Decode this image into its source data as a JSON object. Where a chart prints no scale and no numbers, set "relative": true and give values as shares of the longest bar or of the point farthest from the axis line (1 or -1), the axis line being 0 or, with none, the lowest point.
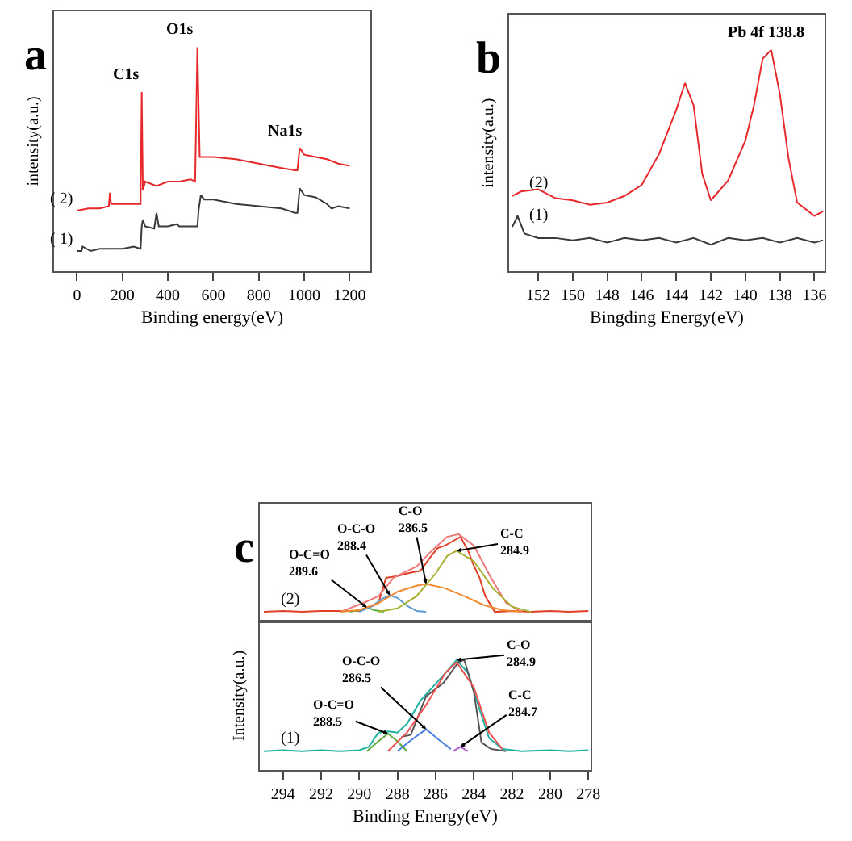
{
  "chart_data": [
    {
      "type": "line",
      "title": "a",
      "xlabel": "Binding energy(eV)",
      "ylabel": "intensity(a.u.)",
      "relative": true,
      "tick_labels": "x",
      "xlim": [
        -100,
        1290
      ],
      "xticks": [
        0,
        200,
        400,
        600,
        800,
        1000,
        1200
      ],
      "series": [
        {
          "name": "( 1)",
          "color": "#3a3a3a",
          "x": [
            0,
            20,
            25,
            60,
            100,
            150,
            200,
            250,
            280,
            285,
            290,
            300,
            340,
            350,
            360,
            400,
            440,
            450,
            500,
            530,
            535,
            545,
            560,
            600,
            700,
            800,
            900,
            960,
            970,
            980,
            1000,
            1050,
            1100,
            1120,
            1150,
            1200
          ],
          "values": [
            0.09,
            0.09,
            0.11,
            0.09,
            0.1,
            0.1,
            0.1,
            0.11,
            0.1,
            0.2,
            0.23,
            0.2,
            0.19,
            0.26,
            0.2,
            0.2,
            0.21,
            0.2,
            0.2,
            0.2,
            0.27,
            0.34,
            0.32,
            0.32,
            0.3,
            0.29,
            0.28,
            0.26,
            0.26,
            0.37,
            0.34,
            0.33,
            0.3,
            0.28,
            0.29,
            0.28
          ]
        },
        {
          "name": "( 2)",
          "color": "#e8292b",
          "x": [
            0,
            50,
            100,
            140,
            145,
            150,
            200,
            250,
            280,
            285,
            290,
            300,
            350,
            400,
            450,
            500,
            520,
            530,
            540,
            560,
            600,
            700,
            800,
            900,
            960,
            970,
            980,
            1000,
            1050,
            1100,
            1150,
            1200
          ],
          "values": [
            0.27,
            0.28,
            0.28,
            0.29,
            0.35,
            0.3,
            0.3,
            0.3,
            0.3,
            0.8,
            0.36,
            0.4,
            0.38,
            0.4,
            0.4,
            0.41,
            0.4,
            1.0,
            0.51,
            0.51,
            0.51,
            0.5,
            0.48,
            0.46,
            0.45,
            0.45,
            0.55,
            0.52,
            0.51,
            0.5,
            0.48,
            0.47
          ]
        }
      ],
      "annotations": [
        {
          "text": "C1s",
          "x": 285,
          "y": 0.8
        },
        {
          "text": "O1s",
          "x": 530,
          "y": 1.0
        },
        {
          "text": "Na1s",
          "x": 1000,
          "y": 0.55
        }
      ]
    },
    {
      "type": "line",
      "title": "b",
      "xlabel": "Bingding Energy(eV)",
      "ylabel": "intensity(a.u.)",
      "relative": true,
      "tick_labels": "x",
      "xlim": [
        153.7,
        135.4
      ],
      "xticks": [
        152,
        150,
        148,
        146,
        144,
        142,
        140,
        138,
        136
      ],
      "series": [
        {
          "name": "(1)",
          "color": "#3a3a3a",
          "x": [
            153.5,
            153.2,
            152.8,
            152.0,
            151.0,
            150.0,
            149.0,
            148.0,
            147.0,
            146.0,
            145.0,
            144.0,
            143.0,
            142.0,
            141.0,
            140.0,
            139.0,
            138.0,
            137.0,
            136.0,
            135.5
          ],
          "values": [
            0.2,
            0.25,
            0.17,
            0.15,
            0.15,
            0.14,
            0.15,
            0.13,
            0.15,
            0.14,
            0.15,
            0.13,
            0.15,
            0.12,
            0.15,
            0.14,
            0.15,
            0.13,
            0.15,
            0.13,
            0.14
          ]
        },
        {
          "name": "(2)",
          "color": "#e8292b",
          "x": [
            153.5,
            153.0,
            152.0,
            151.0,
            150.0,
            149.0,
            148.0,
            147.0,
            146.0,
            145.0,
            144.0,
            143.5,
            143.0,
            142.5,
            142.0,
            141.0,
            140.0,
            139.5,
            139.0,
            138.5,
            138.0,
            137.5,
            137.0,
            136.0,
            135.5
          ],
          "values": [
            0.34,
            0.36,
            0.37,
            0.33,
            0.32,
            0.3,
            0.31,
            0.34,
            0.39,
            0.53,
            0.73,
            0.85,
            0.75,
            0.44,
            0.32,
            0.41,
            0.59,
            0.75,
            0.96,
            1.0,
            0.8,
            0.51,
            0.31,
            0.25,
            0.27
          ]
        }
      ],
      "annotations": [
        {
          "text": "Pb 4f 138.8",
          "x": 138.8,
          "y": 1.0
        }
      ]
    },
    {
      "type": "line",
      "title": "c",
      "relative": true,
      "tick_labels": false,
      "xlim": [
        295.2,
        277.9
      ],
      "series": [
        {
          "name": "(2)",
          "color": "#e04028",
          "x": [
            295.0,
            294.0,
            293.0,
            292.0,
            291.0,
            290.0,
            289.5,
            289.0,
            288.6,
            288.0,
            287.5,
            286.8,
            286.3,
            285.9,
            285.5,
            285.1,
            284.7,
            284.3,
            284.0,
            283.7,
            283.4,
            282.9,
            282.0,
            281.0,
            280.0,
            279.0,
            278.0
          ],
          "values": [
            0.11,
            0.12,
            0.11,
            0.12,
            0.12,
            0.12,
            0.16,
            0.21,
            0.5,
            0.52,
            0.55,
            0.58,
            0.73,
            0.84,
            0.87,
            0.92,
            0.97,
            0.81,
            0.64,
            0.5,
            0.29,
            0.11,
            0.12,
            0.11,
            0.12,
            0.11,
            0.12
          ]
        },
        {
          "color": "#f07878",
          "x": [
            291.0,
            289.8,
            289.0,
            288.2,
            287.0,
            286.2,
            285.4,
            284.8,
            284.0,
            283.1,
            282.3,
            281.5
          ],
          "values": [
            0.11,
            0.21,
            0.29,
            0.5,
            0.63,
            0.81,
            0.97,
            1.0,
            0.87,
            0.5,
            0.21,
            0.11
          ]
        },
        {
          "color": "#5aaa3c",
          "x": [
            290.5,
            290.0,
            289.6,
            289.2,
            288.7
          ],
          "values": [
            0.11,
            0.13,
            0.16,
            0.13,
            0.11
          ]
        },
        {
          "color": "#5b9bd5",
          "x": [
            290.0,
            289.3,
            288.8,
            288.4,
            288.0,
            287.5,
            287.0,
            286.5
          ],
          "values": [
            0.11,
            0.18,
            0.26,
            0.3,
            0.27,
            0.18,
            0.12,
            0.11
          ]
        },
        {
          "color": "#f08a30",
          "x": [
            291.0,
            290.0,
            289.0,
            288.0,
            287.0,
            286.5,
            285.5,
            284.5,
            283.5,
            282.5,
            281.5
          ],
          "values": [
            0.11,
            0.13,
            0.21,
            0.34,
            0.41,
            0.43,
            0.38,
            0.29,
            0.19,
            0.13,
            0.11
          ]
        },
        {
          "color": "#a8b030",
          "x": [
            289.0,
            288.0,
            287.0,
            286.0,
            285.4,
            284.9,
            284.0,
            283.0,
            282.0,
            281.0
          ],
          "values": [
            0.11,
            0.15,
            0.29,
            0.55,
            0.75,
            0.81,
            0.69,
            0.38,
            0.17,
            0.11
          ]
        }
      ],
      "annotations": [
        {
          "text": "O-C=O\n289.6",
          "x": 289.6,
          "y": 0.16
        },
        {
          "text": "O-C-O\n288.4",
          "x": 288.4,
          "y": 0.3
        },
        {
          "text": "C-O\n286.5",
          "x": 286.5,
          "y": 0.43
        },
        {
          "text": "C-C\n284.9",
          "x": 284.9,
          "y": 0.81
        }
      ]
    },
    {
      "type": "line",
      "xlabel": "Binding Energy(eV)",
      "ylabel": "Intensity(a.u.)",
      "relative": true,
      "tick_labels": "x",
      "xlim": [
        295.2,
        277.9
      ],
      "xticks": [
        294,
        292,
        290,
        288,
        286,
        284,
        282,
        280,
        278
      ],
      "series": [
        {
          "name": "(1)",
          "color": "#20b2a0",
          "x": [
            295.0,
            294.0,
            293.0,
            292.0,
            291.0,
            290.0,
            289.5,
            289.0,
            288.5,
            288.0,
            287.5,
            286.8,
            285.5,
            284.9,
            284.3,
            283.7,
            283.2,
            282.5,
            281.5,
            280.0,
            279.0,
            278.0
          ],
          "values": [
            0.17,
            0.18,
            0.17,
            0.18,
            0.17,
            0.18,
            0.21,
            0.34,
            0.35,
            0.34,
            0.42,
            0.63,
            0.88,
            1.0,
            0.88,
            0.55,
            0.29,
            0.19,
            0.17,
            0.18,
            0.17,
            0.18
          ]
        },
        {
          "color": "#555555",
          "x": [
            287.8,
            287.3,
            286.5,
            285.6,
            284.8,
            284.5,
            284.0,
            283.6,
            283.1,
            282.3
          ],
          "values": [
            0.3,
            0.32,
            0.67,
            0.79,
            0.98,
            1.0,
            0.71,
            0.25,
            0.19,
            0.17
          ]
        },
        {
          "color": "#5aaa3c",
          "x": [
            289.6,
            289.0,
            288.5,
            288.0,
            287.5
          ],
          "values": [
            0.17,
            0.26,
            0.33,
            0.26,
            0.17
          ]
        },
        {
          "color": "#4a7ee0",
          "x": [
            288.0,
            287.3,
            286.5,
            285.8,
            285.2
          ],
          "values": [
            0.17,
            0.27,
            0.37,
            0.27,
            0.19
          ]
        },
        {
          "color": "#f05050",
          "x": [
            288.5,
            287.5,
            286.5,
            285.5,
            284.9,
            284.0,
            283.2,
            282.5
          ],
          "values": [
            0.17,
            0.34,
            0.59,
            0.88,
            0.98,
            0.75,
            0.34,
            0.19
          ]
        },
        {
          "color": "#b060d0",
          "x": [
            285.1,
            284.7,
            284.3
          ],
          "values": [
            0.17,
            0.21,
            0.17
          ]
        }
      ],
      "annotations": [
        {
          "text": "O-C=O\n288.5",
          "x": 288.5,
          "y": 0.33
        },
        {
          "text": "O-C-O\n286.5",
          "x": 286.5,
          "y": 0.37
        },
        {
          "text": "C-O\n284.9",
          "x": 284.9,
          "y": 1.0
        },
        {
          "text": "C-C\n284.7",
          "x": 284.7,
          "y": 0.21
        }
      ]
    }
  ]
}
